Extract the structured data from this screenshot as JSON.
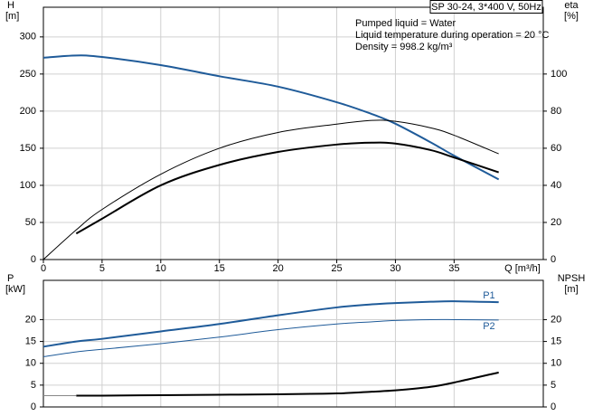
{
  "chart_data": [
    {
      "type": "line",
      "title": "SP 30-24, 3*400 V, 50Hz",
      "annotations": [
        "Pumped liquid = Water",
        "Liquid temperature during operation = 20 °C",
        "Density = 998.2 kg/m³"
      ],
      "ylabel": "H",
      "yunit": "[m]",
      "y2label": "eta",
      "y2unit": "[%]",
      "xlabel": "Q [m³/h]",
      "x": [
        0,
        2.8,
        5,
        10,
        15,
        20,
        25,
        28,
        30,
        33,
        35,
        38.8
      ],
      "xlim": [
        0,
        42.6
      ],
      "xticks": [
        0,
        5,
        10,
        15,
        20,
        25,
        30,
        35
      ],
      "ylim": [
        0,
        340
      ],
      "yticks": [
        0,
        50,
        100,
        150,
        200,
        250,
        300
      ],
      "y2lim": [
        0,
        136
      ],
      "y2ticks": [
        0,
        20,
        40,
        60,
        80,
        100
      ],
      "grid": true,
      "series": [
        {
          "color": "#1f5b99",
          "line_width": 2,
          "values": [
            272,
            275,
            273,
            262,
            247,
            233,
            212,
            196,
            183,
            158,
            140,
            108
          ]
        },
        {
          "color": "#000000",
          "line_width": 2,
          "axis": "y2",
          "values": [
            null,
            14,
            22,
            40,
            51,
            58,
            62,
            63,
            62.5,
            59,
            55,
            47
          ]
        },
        {
          "color": "#000000",
          "line_width": 1,
          "axis": "y2",
          "values": [
            0,
            16,
            27,
            46,
            60,
            68.5,
            73,
            75,
            74.5,
            71,
            67,
            57
          ]
        }
      ]
    },
    {
      "type": "line",
      "ylabel": "P",
      "yunit": "[kW]",
      "y2label": "NPSH",
      "y2unit": "[m]",
      "x": [
        0,
        2.8,
        5,
        10,
        15,
        20,
        25,
        28,
        30,
        33,
        35,
        38.8
      ],
      "xlim": [
        0,
        42.6
      ],
      "ylim": [
        0,
        29
      ],
      "yticks": [
        0,
        5,
        10,
        15,
        20
      ],
      "y2lim": [
        0,
        29
      ],
      "y2ticks": [
        0,
        5,
        10,
        15,
        20
      ],
      "grid": true,
      "series": [
        {
          "name": "P1",
          "color": "#1f5b99",
          "line_width": 2,
          "values": [
            13.8,
            15,
            15.6,
            17.3,
            19,
            21,
            22.8,
            23.5,
            23.8,
            24.1,
            24.2,
            24
          ]
        },
        {
          "name": "P2",
          "color": "#1f5b99",
          "line_width": 1,
          "values": [
            11.5,
            12.6,
            13.2,
            14.5,
            16,
            17.7,
            19,
            19.5,
            19.8,
            20,
            20,
            19.9
          ]
        },
        {
          "color": "#000000",
          "line_width": 2,
          "axis": "y2",
          "values": [
            null,
            2.6,
            2.6,
            2.7,
            2.8,
            2.9,
            3.1,
            3.5,
            3.8,
            4.6,
            5.6,
            7.9
          ]
        },
        {
          "color": "#888888",
          "line_width": 1,
          "axis": "y2",
          "values": [
            2.6,
            2.6,
            null,
            null,
            null,
            null,
            null,
            null,
            null,
            null,
            null,
            null
          ]
        }
      ]
    }
  ]
}
